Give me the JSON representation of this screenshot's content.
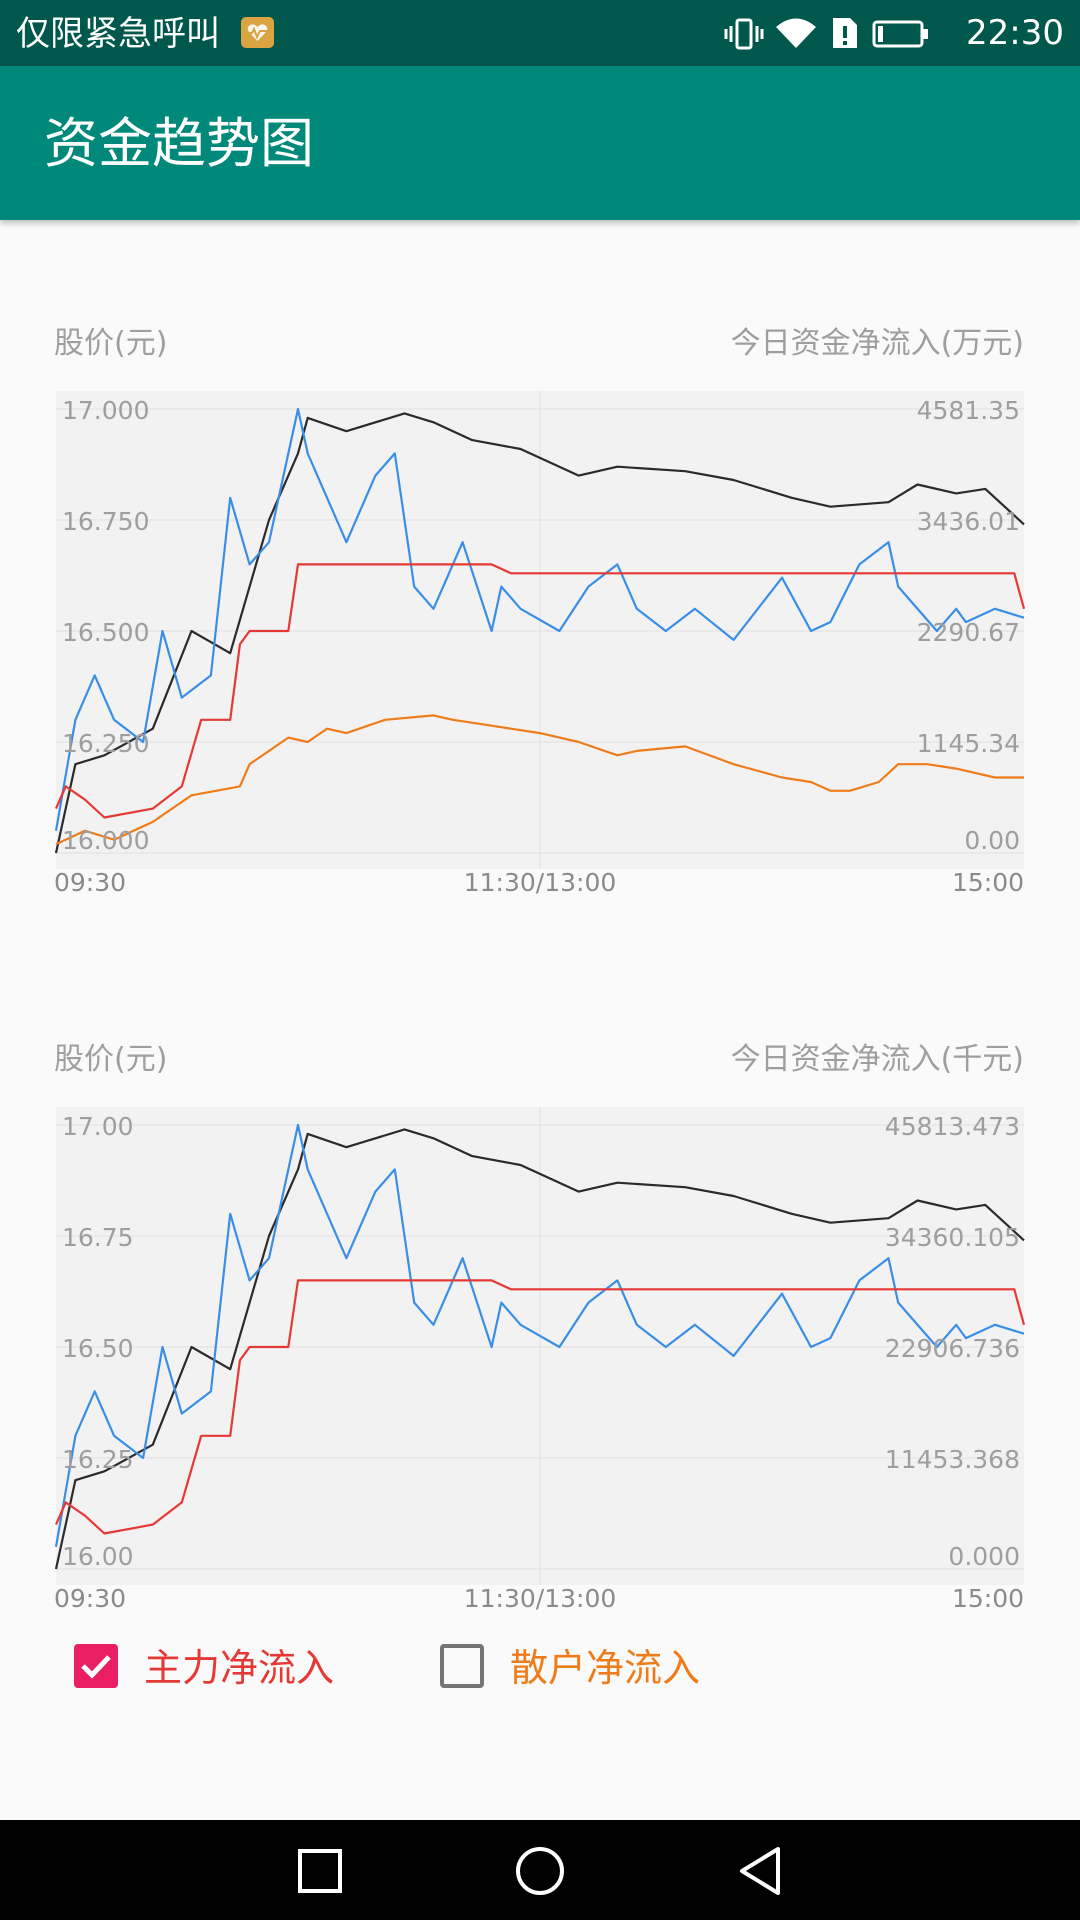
{
  "status_bar": {
    "left_text": "仅限紧急呼叫",
    "time": "22:30",
    "icons": [
      "emergency-heart-icon",
      "vibrate-icon",
      "wifi-icon",
      "sim-alert-icon",
      "battery-icon"
    ]
  },
  "app_bar": {
    "title": "资金趋势图"
  },
  "colors": {
    "app_bar": "#00897b",
    "status_bar": "#00574b",
    "price": "#2b2b2b",
    "main_inflow": "#e53935",
    "retail_inflow": "#ef7c1a",
    "blue_series": "#3a8ee6",
    "checkbox_checked": "#e91e63"
  },
  "chart_data": [
    {
      "type": "line",
      "left_axis_title": "股价(元)",
      "right_axis_title": "今日资金净流入(万元)",
      "left_ticks": [
        "17.000",
        "16.750",
        "16.500",
        "16.250",
        "16.000"
      ],
      "right_ticks": [
        "4581.35",
        "3436.01",
        "2290.67",
        "1145.34",
        "0.00"
      ],
      "x_ticks": [
        "09:30",
        "11:30/13:00",
        "15:00"
      ],
      "left_ylim": [
        16.0,
        17.0
      ],
      "right_ylim": [
        0,
        4581.35
      ],
      "grid": true,
      "series": [
        {
          "color": "#2b2b2b",
          "t": [
            0,
            0.02,
            0.05,
            0.1,
            0.14,
            0.18,
            0.22,
            0.25,
            0.26,
            0.3,
            0.36,
            0.39,
            0.43,
            0.48,
            0.54,
            0.58,
            0.65,
            0.7,
            0.76,
            0.8,
            0.86,
            0.89,
            0.93,
            0.96,
            1.0
          ],
          "values": [
            16.0,
            16.2,
            16.22,
            16.28,
            16.5,
            16.45,
            16.75,
            16.9,
            16.98,
            16.95,
            16.99,
            16.97,
            16.93,
            16.91,
            16.85,
            16.87,
            16.86,
            16.84,
            16.8,
            16.78,
            16.79,
            16.83,
            16.81,
            16.82,
            16.74
          ]
        },
        {
          "color": "#3a8ee6",
          "t": [
            0,
            0.02,
            0.04,
            0.06,
            0.09,
            0.11,
            0.13,
            0.16,
            0.18,
            0.2,
            0.22,
            0.25,
            0.26,
            0.3,
            0.33,
            0.35,
            0.37,
            0.39,
            0.42,
            0.45,
            0.46,
            0.48,
            0.52,
            0.55,
            0.58,
            0.6,
            0.63,
            0.66,
            0.7,
            0.75,
            0.78,
            0.8,
            0.83,
            0.86,
            0.87,
            0.91,
            0.93,
            0.94,
            0.97,
            1.0
          ],
          "values": [
            16.05,
            16.3,
            16.4,
            16.3,
            16.25,
            16.5,
            16.35,
            16.4,
            16.8,
            16.65,
            16.7,
            17.0,
            16.9,
            16.7,
            16.85,
            16.9,
            16.6,
            16.55,
            16.7,
            16.5,
            16.6,
            16.55,
            16.5,
            16.6,
            16.65,
            16.55,
            16.5,
            16.55,
            16.48,
            16.62,
            16.5,
            16.52,
            16.65,
            16.7,
            16.6,
            16.5,
            16.55,
            16.52,
            16.55,
            16.53
          ]
        },
        {
          "color": "#e53935",
          "t": [
            0,
            0.01,
            0.03,
            0.05,
            0.1,
            0.13,
            0.15,
            0.18,
            0.19,
            0.2,
            0.24,
            0.25,
            0.3,
            0.45,
            0.47,
            0.6,
            0.8,
            0.95,
            0.99,
            1.0
          ],
          "values": [
            16.1,
            16.15,
            16.12,
            16.08,
            16.1,
            16.15,
            16.3,
            16.3,
            16.47,
            16.5,
            16.5,
            16.65,
            16.65,
            16.65,
            16.63,
            16.63,
            16.63,
            16.63,
            16.63,
            16.55
          ]
        },
        {
          "color": "#ef7c1a",
          "t": [
            0,
            0.03,
            0.06,
            0.1,
            0.14,
            0.19,
            0.2,
            0.24,
            0.26,
            0.28,
            0.3,
            0.34,
            0.39,
            0.41,
            0.44,
            0.47,
            0.5,
            0.54,
            0.58,
            0.6,
            0.65,
            0.7,
            0.75,
            0.78,
            0.8,
            0.82,
            0.85,
            0.87,
            0.9,
            0.93,
            0.95,
            0.97,
            1.0
          ],
          "values": [
            16.02,
            16.05,
            16.03,
            16.07,
            16.13,
            16.15,
            16.2,
            16.26,
            16.25,
            16.28,
            16.27,
            16.3,
            16.31,
            16.3,
            16.29,
            16.28,
            16.27,
            16.25,
            16.22,
            16.23,
            16.24,
            16.2,
            16.17,
            16.16,
            16.14,
            16.14,
            16.16,
            16.2,
            16.2,
            16.19,
            16.18,
            16.17,
            16.17
          ]
        }
      ]
    },
    {
      "type": "line",
      "left_axis_title": "股价(元)",
      "right_axis_title": "今日资金净流入(千元)",
      "left_ticks": [
        "17.00",
        "16.75",
        "16.50",
        "16.25",
        "16.00"
      ],
      "right_ticks": [
        "45813.473",
        "34360.105",
        "22906.736",
        "11453.368",
        "0.000"
      ],
      "x_ticks": [
        "09:30",
        "11:30/13:00",
        "15:00"
      ],
      "left_ylim": [
        16.0,
        17.0
      ],
      "right_ylim": [
        0,
        45813.473
      ],
      "grid": true,
      "series": [
        {
          "color": "#2b2b2b",
          "t": [
            0,
            0.02,
            0.05,
            0.1,
            0.14,
            0.18,
            0.22,
            0.25,
            0.26,
            0.3,
            0.36,
            0.39,
            0.43,
            0.48,
            0.54,
            0.58,
            0.65,
            0.7,
            0.76,
            0.8,
            0.86,
            0.89,
            0.93,
            0.96,
            1.0
          ],
          "values": [
            16.0,
            16.2,
            16.22,
            16.28,
            16.5,
            16.45,
            16.75,
            16.9,
            16.98,
            16.95,
            16.99,
            16.97,
            16.93,
            16.91,
            16.85,
            16.87,
            16.86,
            16.84,
            16.8,
            16.78,
            16.79,
            16.83,
            16.81,
            16.82,
            16.74
          ]
        },
        {
          "color": "#3a8ee6",
          "t": [
            0,
            0.02,
            0.04,
            0.06,
            0.09,
            0.11,
            0.13,
            0.16,
            0.18,
            0.2,
            0.22,
            0.25,
            0.26,
            0.3,
            0.33,
            0.35,
            0.37,
            0.39,
            0.42,
            0.45,
            0.46,
            0.48,
            0.52,
            0.55,
            0.58,
            0.6,
            0.63,
            0.66,
            0.7,
            0.75,
            0.78,
            0.8,
            0.83,
            0.86,
            0.87,
            0.91,
            0.93,
            0.94,
            0.97,
            1.0
          ],
          "values": [
            16.05,
            16.3,
            16.4,
            16.3,
            16.25,
            16.5,
            16.35,
            16.4,
            16.8,
            16.65,
            16.7,
            17.0,
            16.9,
            16.7,
            16.85,
            16.9,
            16.6,
            16.55,
            16.7,
            16.5,
            16.6,
            16.55,
            16.5,
            16.6,
            16.65,
            16.55,
            16.5,
            16.55,
            16.48,
            16.62,
            16.5,
            16.52,
            16.65,
            16.7,
            16.6,
            16.5,
            16.55,
            16.52,
            16.55,
            16.53
          ]
        },
        {
          "color": "#e53935",
          "t": [
            0,
            0.01,
            0.03,
            0.05,
            0.1,
            0.13,
            0.15,
            0.18,
            0.19,
            0.2,
            0.24,
            0.25,
            0.3,
            0.45,
            0.47,
            0.6,
            0.8,
            0.95,
            0.99,
            1.0
          ],
          "values": [
            16.1,
            16.15,
            16.12,
            16.08,
            16.1,
            16.15,
            16.3,
            16.3,
            16.47,
            16.5,
            16.5,
            16.65,
            16.65,
            16.65,
            16.63,
            16.63,
            16.63,
            16.63,
            16.63,
            16.55
          ]
        }
      ]
    }
  ],
  "legend": {
    "main": {
      "label": "主力净流入",
      "checked": true,
      "color": "#e53935"
    },
    "retail": {
      "label": "散户净流入",
      "checked": false,
      "color": "#ef7c1a"
    }
  },
  "nav_bar": {
    "icons": [
      "recent-apps-icon",
      "home-icon",
      "back-icon"
    ]
  }
}
